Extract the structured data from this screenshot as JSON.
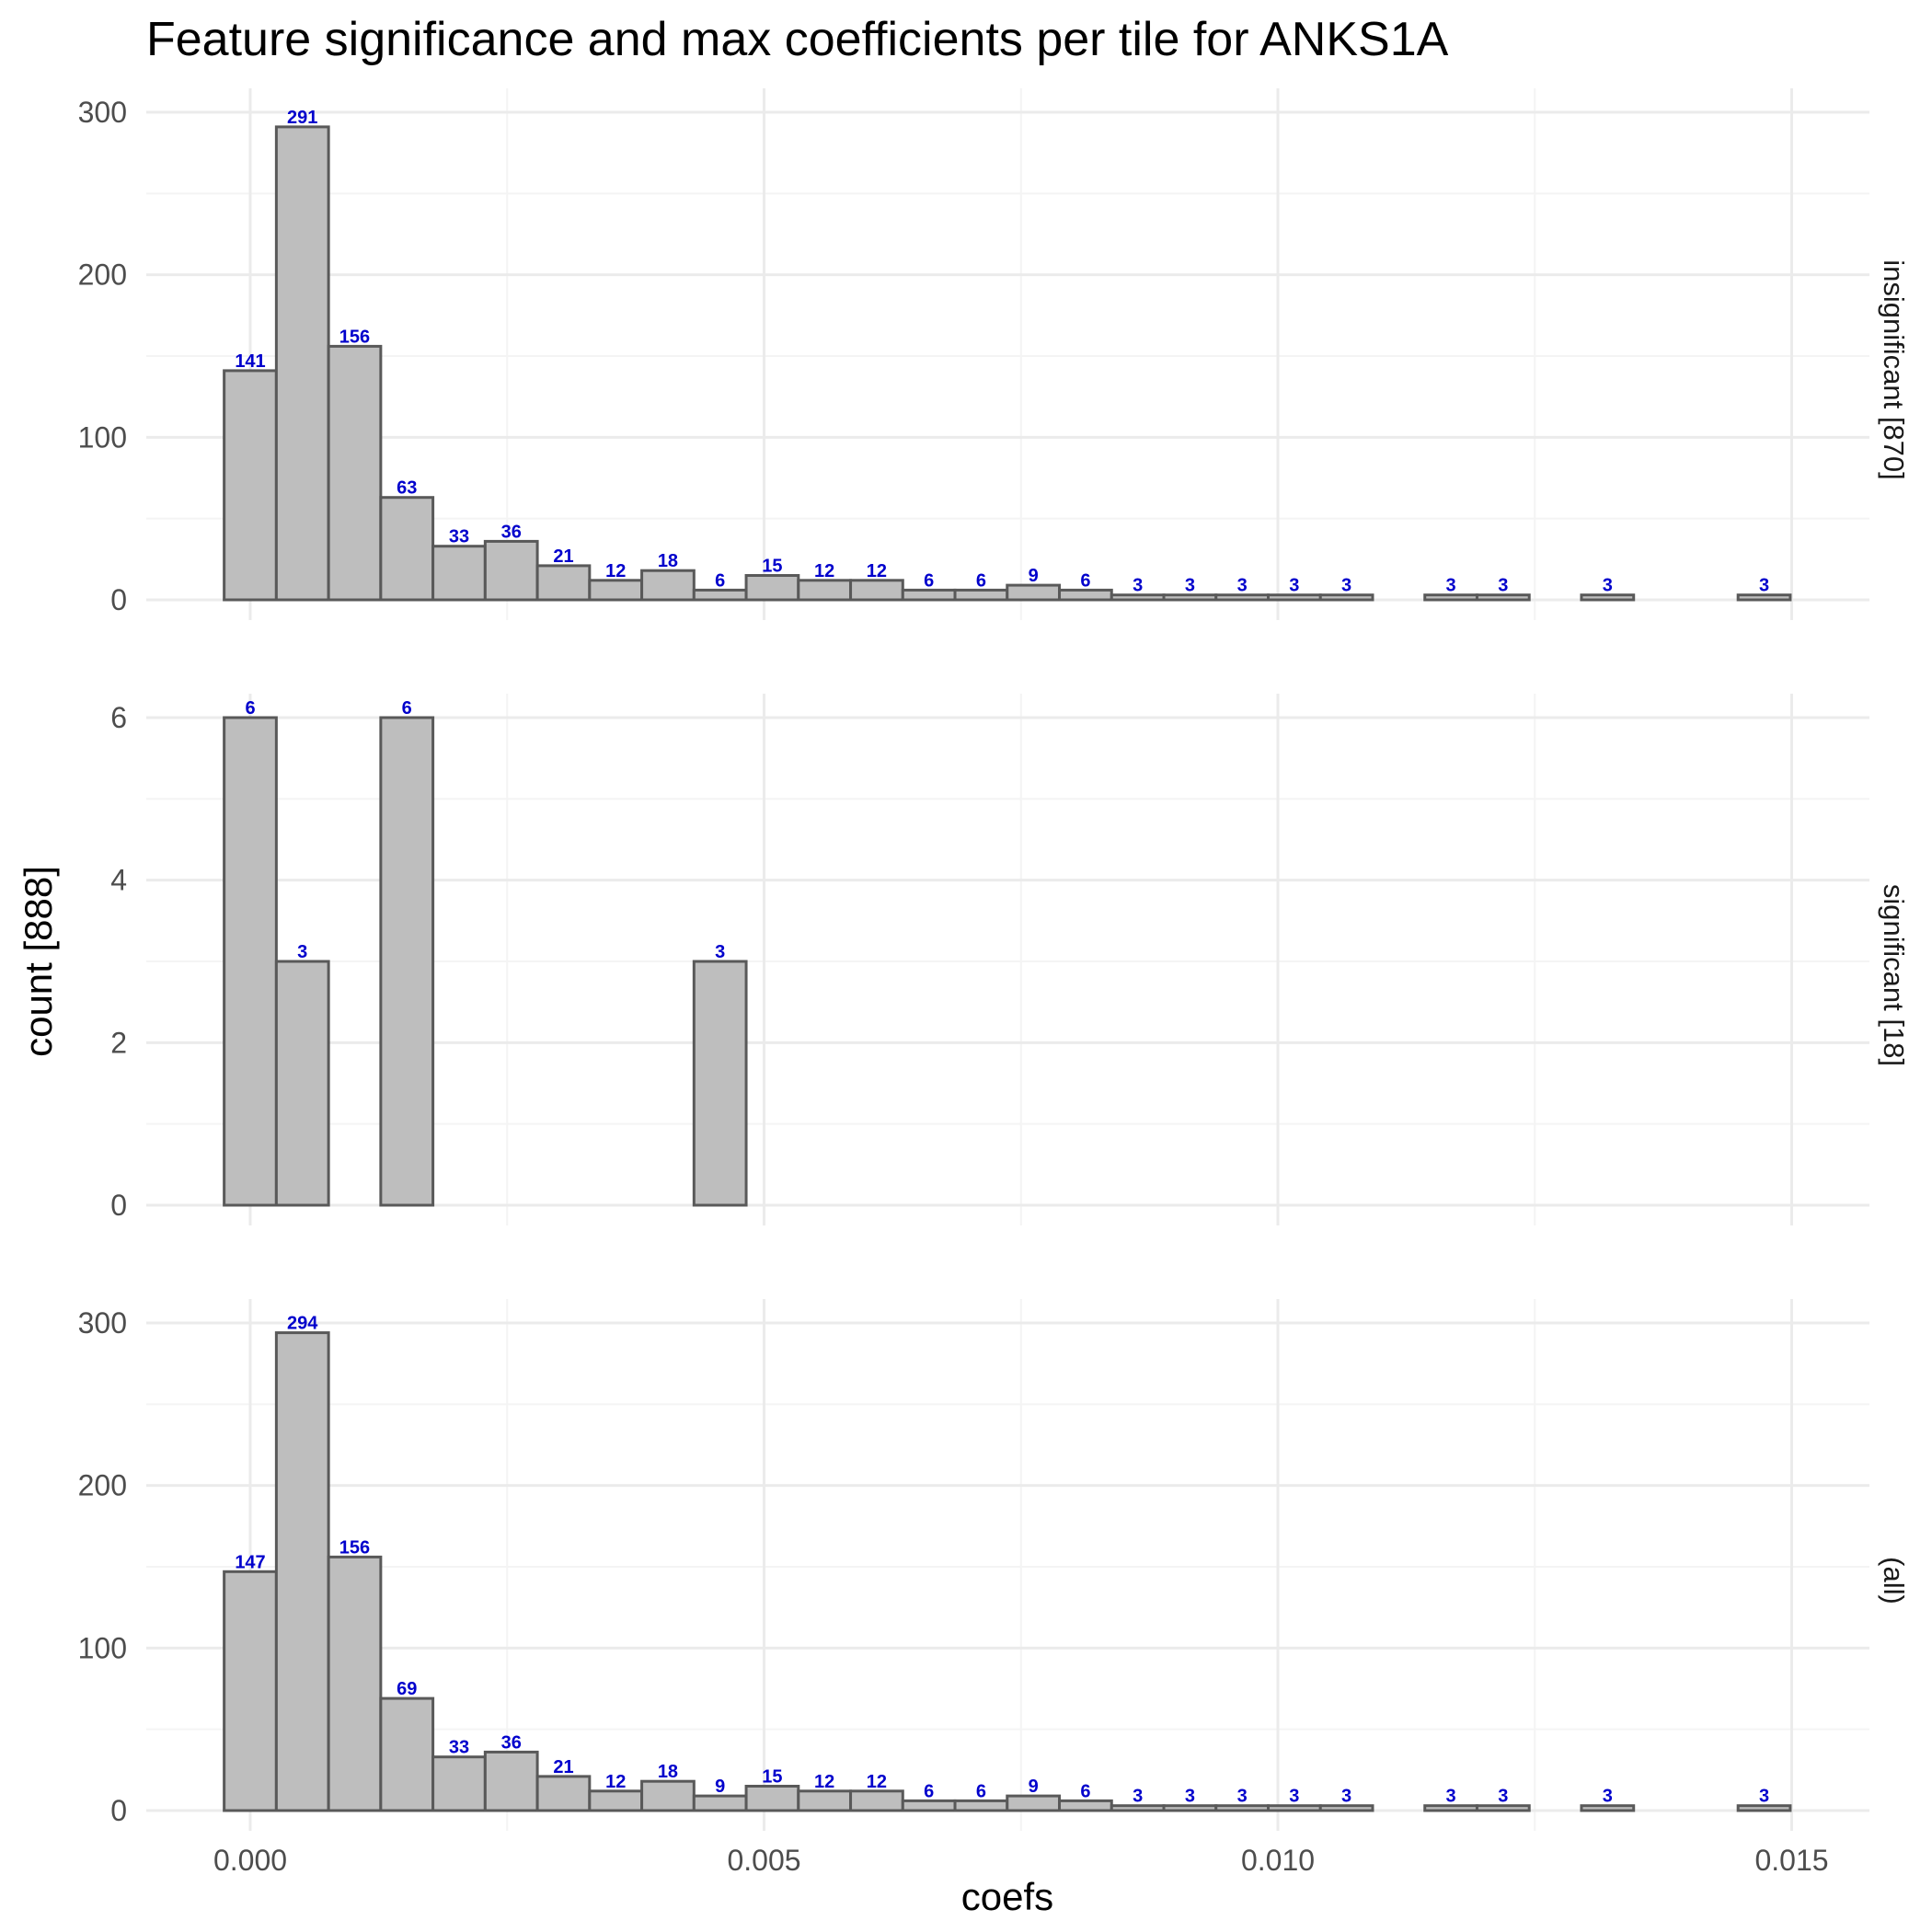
{
  "chart_data": {
    "type": "bar",
    "title": "Feature significance and max coefficients per tile for ANKS1A",
    "xlabel": "coefs",
    "ylabel": "count [888]",
    "xlim": [
      -0.0002,
      0.015
    ],
    "x_ticks": [
      "0.000",
      "0.005",
      "0.010",
      "0.015"
    ],
    "bin_width": 0.000508,
    "bin_start": -0.000254,
    "grid": true,
    "panels": [
      {
        "label": "insignificant [870]",
        "ylim": [
          0,
          300
        ],
        "y_ticks": [
          "0",
          "100",
          "200",
          "300"
        ],
        "values": [
          141,
          291,
          156,
          63,
          33,
          36,
          21,
          12,
          18,
          6,
          15,
          12,
          12,
          6,
          6,
          9,
          6,
          3,
          3,
          3,
          3,
          3,
          0,
          3,
          3,
          0,
          3,
          0,
          0,
          3
        ],
        "labels": [
          "141",
          "291",
          "156",
          "63",
          "33",
          "36",
          "21",
          "12",
          "18",
          "6",
          "15",
          "12",
          "12",
          "6",
          "6",
          "9",
          "6",
          "3",
          "3",
          "3",
          "3",
          "3",
          "",
          "3",
          "3",
          "",
          "3",
          "",
          "",
          "3"
        ]
      },
      {
        "label": "significant [18]",
        "ylim": [
          0,
          6
        ],
        "y_ticks": [
          "0",
          "2",
          "4",
          "6"
        ],
        "values": [
          6,
          3,
          0,
          6,
          0,
          0,
          0,
          0,
          0,
          3,
          0,
          0,
          0,
          0,
          0,
          0,
          0,
          0,
          0,
          0,
          0,
          0,
          0,
          0,
          0,
          0,
          0,
          0,
          0,
          0
        ],
        "labels": [
          "6",
          "3",
          "",
          "6",
          "",
          "",
          "",
          "",
          "",
          "3",
          "",
          "",
          "",
          "",
          "",
          "",
          "",
          "",
          "",
          "",
          "",
          "",
          "",
          "",
          "",
          "",
          "",
          "",
          "",
          ""
        ]
      },
      {
        "label": "(all)",
        "ylim": [
          0,
          300
        ],
        "y_ticks": [
          "0",
          "100",
          "200",
          "300"
        ],
        "values": [
          147,
          294,
          156,
          69,
          33,
          36,
          21,
          12,
          18,
          9,
          15,
          12,
          12,
          6,
          6,
          9,
          6,
          3,
          3,
          3,
          3,
          3,
          0,
          3,
          3,
          0,
          3,
          0,
          0,
          3
        ],
        "labels": [
          "147",
          "294",
          "156",
          "69",
          "33",
          "36",
          "21",
          "12",
          "18",
          "9",
          "15",
          "12",
          "12",
          "6",
          "6",
          "9",
          "6",
          "3",
          "3",
          "3",
          "3",
          "3",
          "",
          "3",
          "3",
          "",
          "3",
          "",
          "",
          "3"
        ]
      }
    ]
  },
  "colors": {
    "bar_fill": "#bebebe",
    "bar_stroke": "#595959",
    "bar_label": "#0000cc",
    "grid_major": "#ebebeb",
    "grid_minor": "#f4f4f4"
  }
}
